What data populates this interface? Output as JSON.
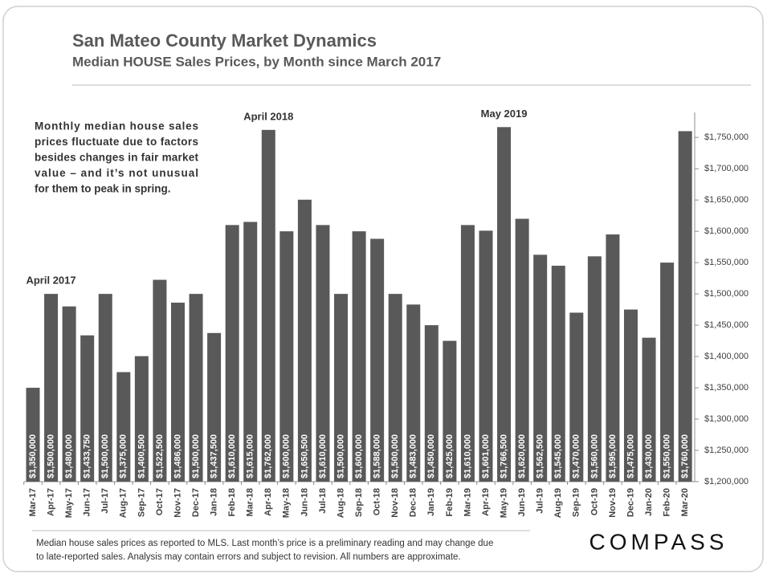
{
  "chart_data": {
    "type": "bar",
    "title": "San Mateo County Market Dynamics",
    "subtitle": "Median HOUSE Sales Prices, by Month since March 2017",
    "categories": [
      "Mar-17",
      "Apr-17",
      "May-17",
      "Jun-17",
      "Jul-17",
      "Aug-17",
      "Sep-17",
      "Oct-17",
      "Nov-17",
      "Dec-17",
      "Jan-18",
      "Feb-18",
      "Mar-18",
      "Apr-18",
      "May-18",
      "Jun-18",
      "Jul-18",
      "Aug-18",
      "Sep-18",
      "Oct-18",
      "Nov-18",
      "Dec-18",
      "Jan-19",
      "Feb-19",
      "Mar-19",
      "Apr-19",
      "May-19",
      "Jun-19",
      "Jul-19",
      "Aug-19",
      "Sep-19",
      "Oct-19",
      "Nov-19",
      "Dec-19",
      "Jan-20",
      "Feb-20",
      "Mar-20"
    ],
    "values": [
      1350000,
      1500000,
      1480000,
      1433750,
      1500000,
      1375000,
      1400500,
      1522500,
      1486000,
      1500000,
      1437500,
      1610000,
      1615000,
      1762000,
      1600000,
      1650500,
      1610000,
      1500000,
      1600000,
      1588000,
      1500000,
      1483000,
      1450000,
      1425000,
      1610000,
      1601000,
      1766500,
      1620000,
      1562500,
      1545000,
      1470000,
      1560000,
      1595000,
      1475000,
      1430000,
      1550000,
      1760000
    ],
    "value_labels": [
      "$1,350,000",
      "$1,500,000",
      "$1,480,000",
      "$1,433,750",
      "$1,500,000",
      "$1,375,000",
      "$1,400,500",
      "$1,522,500",
      "$1,486,000",
      "$1,500,000",
      "$1,437,500",
      "$1,610,000",
      "$1,615,000",
      "$1,762,000",
      "$1,600,000",
      "$1,650,500",
      "$1,610,000",
      "$1,500,000",
      "$1,600,000",
      "$1,588,000",
      "$1,500,000",
      "$1,483,000",
      "$1,450,000",
      "$1,425,000",
      "$1,610,000",
      "$1,601,000",
      "$1,766,500",
      "$1,620,000",
      "$1,562,500",
      "$1,545,000",
      "$1,470,000",
      "$1,560,000",
      "$1,595,000",
      "$1,475,000",
      "$1,430,000",
      "$1,550,000",
      "$1,760,000"
    ],
    "color": "#595959",
    "ylim": [
      1200000,
      1790000
    ],
    "yticks": [
      {
        "value": 1200000,
        "label": "$1,200,000"
      },
      {
        "value": 1250000,
        "label": "$1,250,000"
      },
      {
        "value": 1300000,
        "label": "$1,300,000"
      },
      {
        "value": 1350000,
        "label": "$1,350,000"
      },
      {
        "value": 1400000,
        "label": "$1,400,000"
      },
      {
        "value": 1450000,
        "label": "$1,450,000"
      },
      {
        "value": 1500000,
        "label": "$1,500,000"
      },
      {
        "value": 1550000,
        "label": "$1,550,000"
      },
      {
        "value": 1600000,
        "label": "$1,600,000"
      },
      {
        "value": 1650000,
        "label": "$1,650,000"
      },
      {
        "value": 1700000,
        "label": "$1,700,000"
      },
      {
        "value": 1750000,
        "label": "$1,750,000"
      }
    ],
    "y_axis_side": "right",
    "grid": false,
    "annotations": [
      {
        "text": "April 2017",
        "category": "Apr-17"
      },
      {
        "text": "April 2018",
        "category": "Apr-18"
      },
      {
        "text": "May 2019",
        "category": "May-19"
      }
    ],
    "note": [
      "Monthly median house sales",
      "prices fluctuate due to factors",
      "besides changes in fair market",
      "value – and it’s not unusual",
      "for them to peak in spring."
    ],
    "footnote": [
      "Median house sales prices as reported to MLS. Last month’s price is a preliminary reading and may change due",
      "to late-reported sales. Analysis may contain errors and subject to revision. All numbers are approximate."
    ],
    "brand": "COMPASS"
  }
}
